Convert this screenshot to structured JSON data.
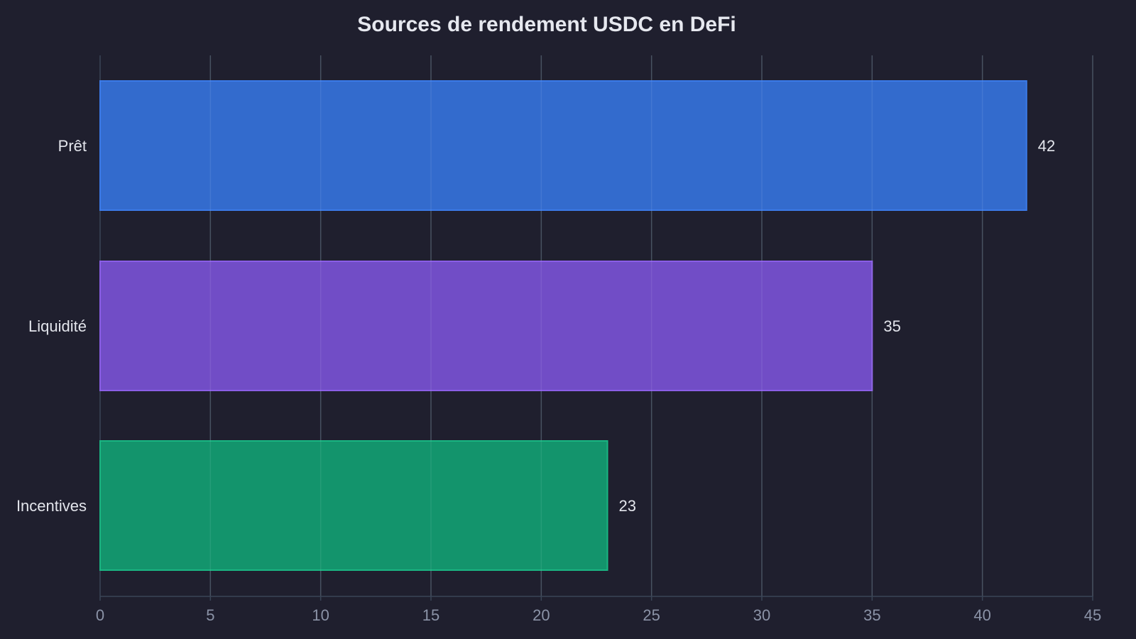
{
  "chart_data": {
    "type": "bar",
    "orientation": "horizontal",
    "title": "Sources de rendement USDC en DeFi",
    "xlabel": "",
    "ylabel": "",
    "categories": [
      "Prêt",
      "Liquidité",
      "Incentives"
    ],
    "values": [
      42,
      35,
      23
    ],
    "value_labels": [
      "42",
      "35",
      "23"
    ],
    "colors": [
      "#3570d6",
      "#7650cf",
      "#139b70"
    ],
    "border_colors": [
      "#3b7ae8",
      "#8a5ee6",
      "#1ab582"
    ],
    "xlim": [
      0,
      45
    ],
    "x_ticks": [
      0,
      5,
      10,
      15,
      20,
      25,
      30,
      35,
      40,
      45
    ],
    "x_tick_labels": [
      "0",
      "5",
      "10",
      "15",
      "20",
      "25",
      "30",
      "35",
      "40",
      "45"
    ],
    "grid": true,
    "legend": "none"
  },
  "theme": {
    "background": "#1f1f2e",
    "grid_color": "#3a4556",
    "axis_color": "#3a4556",
    "text_color": "#e3e5ec",
    "tick_color": "#8b93a7"
  }
}
